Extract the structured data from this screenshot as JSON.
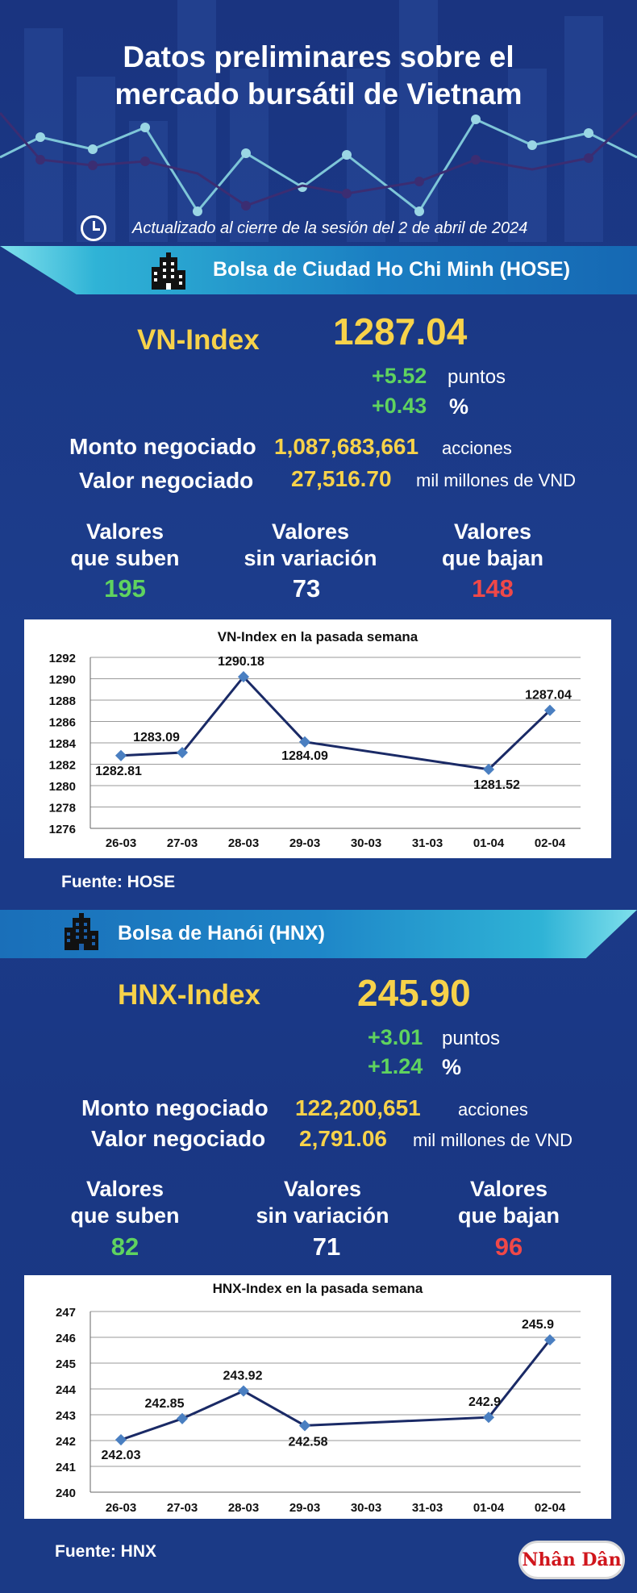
{
  "header": {
    "title_line1": "Datos preliminares sobre el",
    "title_line2": "mercado bursátil de Vietnam",
    "updated": "Actualizado al cierre de la sesión del 2 de abril de 2024"
  },
  "hose": {
    "banner": "Bolsa de Ciudad Ho Chi Minh (HOSE)",
    "index_name": "VN-Index",
    "index_value": "1287.04",
    "change_points": "+5.52",
    "change_points_unit": "puntos",
    "change_pct": "+0.43",
    "change_pct_unit": "%",
    "volume_label": "Monto negociado",
    "volume_value": "1,087,683,661",
    "volume_unit": "acciones",
    "value_label": "Valor negociado",
    "value_value": "27,516.70",
    "value_unit": "mil millones de VND",
    "up_label_1": "Valores",
    "up_label_2": "que suben",
    "up_count": "195",
    "flat_label_1": "Valores",
    "flat_label_2": "sin variación",
    "flat_count": "73",
    "down_label_1": "Valores",
    "down_label_2": "que bajan",
    "down_count": "148",
    "source": "Fuente: HOSE"
  },
  "hnx": {
    "banner": "Bolsa de Hanói (HNX)",
    "index_name": "HNX-Index",
    "index_value": "245.90",
    "change_points": "+3.01",
    "change_points_unit": "puntos",
    "change_pct": "+1.24",
    "change_pct_unit": "%",
    "volume_label": "Monto negociado",
    "volume_value": "122,200,651",
    "volume_unit": "acciones",
    "value_label": "Valor negociado",
    "value_value": "2,791.06",
    "value_unit": "mil millones de VND",
    "up_label_1": "Valores",
    "up_label_2": "que suben",
    "up_count": "82",
    "flat_label_1": "Valores",
    "flat_label_2": "sin variación",
    "flat_count": "71",
    "down_label_1": "Valores",
    "down_label_2": "que bajan",
    "down_count": "96",
    "source": "Fuente:  HNX"
  },
  "logo": "Nhân Dân",
  "colors": {
    "background": "#1b3a86",
    "accent_yellow": "#f7d24a",
    "up_green": "#5fd35f",
    "down_red": "#f04848",
    "line": "#1a2a66",
    "marker": "#4a7fc1"
  },
  "chart_data": [
    {
      "type": "line",
      "title": "VN-Index en la pasada semana",
      "categories": [
        "26-03",
        "27-03",
        "28-03",
        "29-03",
        "30-03",
        "31-03",
        "01-04",
        "02-04"
      ],
      "points": [
        {
          "x": "26-03",
          "y": 1282.81,
          "label": "1282.81"
        },
        {
          "x": "27-03",
          "y": 1283.09,
          "label": "1283.09"
        },
        {
          "x": "28-03",
          "y": 1290.18,
          "label": "1290.18"
        },
        {
          "x": "29-03",
          "y": 1284.09,
          "label": "1284.09"
        },
        {
          "x": "01-04",
          "y": 1281.52,
          "label": "1281.52"
        },
        {
          "x": "02-04",
          "y": 1287.04,
          "label": "1287.04"
        }
      ],
      "yticks": [
        1276,
        1278,
        1280,
        1282,
        1284,
        1286,
        1288,
        1290,
        1292
      ],
      "ylim": [
        1276,
        1292
      ],
      "grid": true
    },
    {
      "type": "line",
      "title": "HNX-Index en la pasada semana",
      "categories": [
        "26-03",
        "27-03",
        "28-03",
        "29-03",
        "30-03",
        "31-03",
        "01-04",
        "02-04"
      ],
      "points": [
        {
          "x": "26-03",
          "y": 242.03,
          "label": "242.03"
        },
        {
          "x": "27-03",
          "y": 242.85,
          "label": "242.85"
        },
        {
          "x": "28-03",
          "y": 243.92,
          "label": "243.92"
        },
        {
          "x": "29-03",
          "y": 242.58,
          "label": "242.58"
        },
        {
          "x": "01-04",
          "y": 242.9,
          "label": "242.9"
        },
        {
          "x": "02-04",
          "y": 245.9,
          "label": "245.9"
        }
      ],
      "yticks": [
        240,
        241,
        242,
        243,
        244,
        245,
        246,
        247
      ],
      "ylim": [
        240,
        247
      ],
      "grid": true
    }
  ]
}
